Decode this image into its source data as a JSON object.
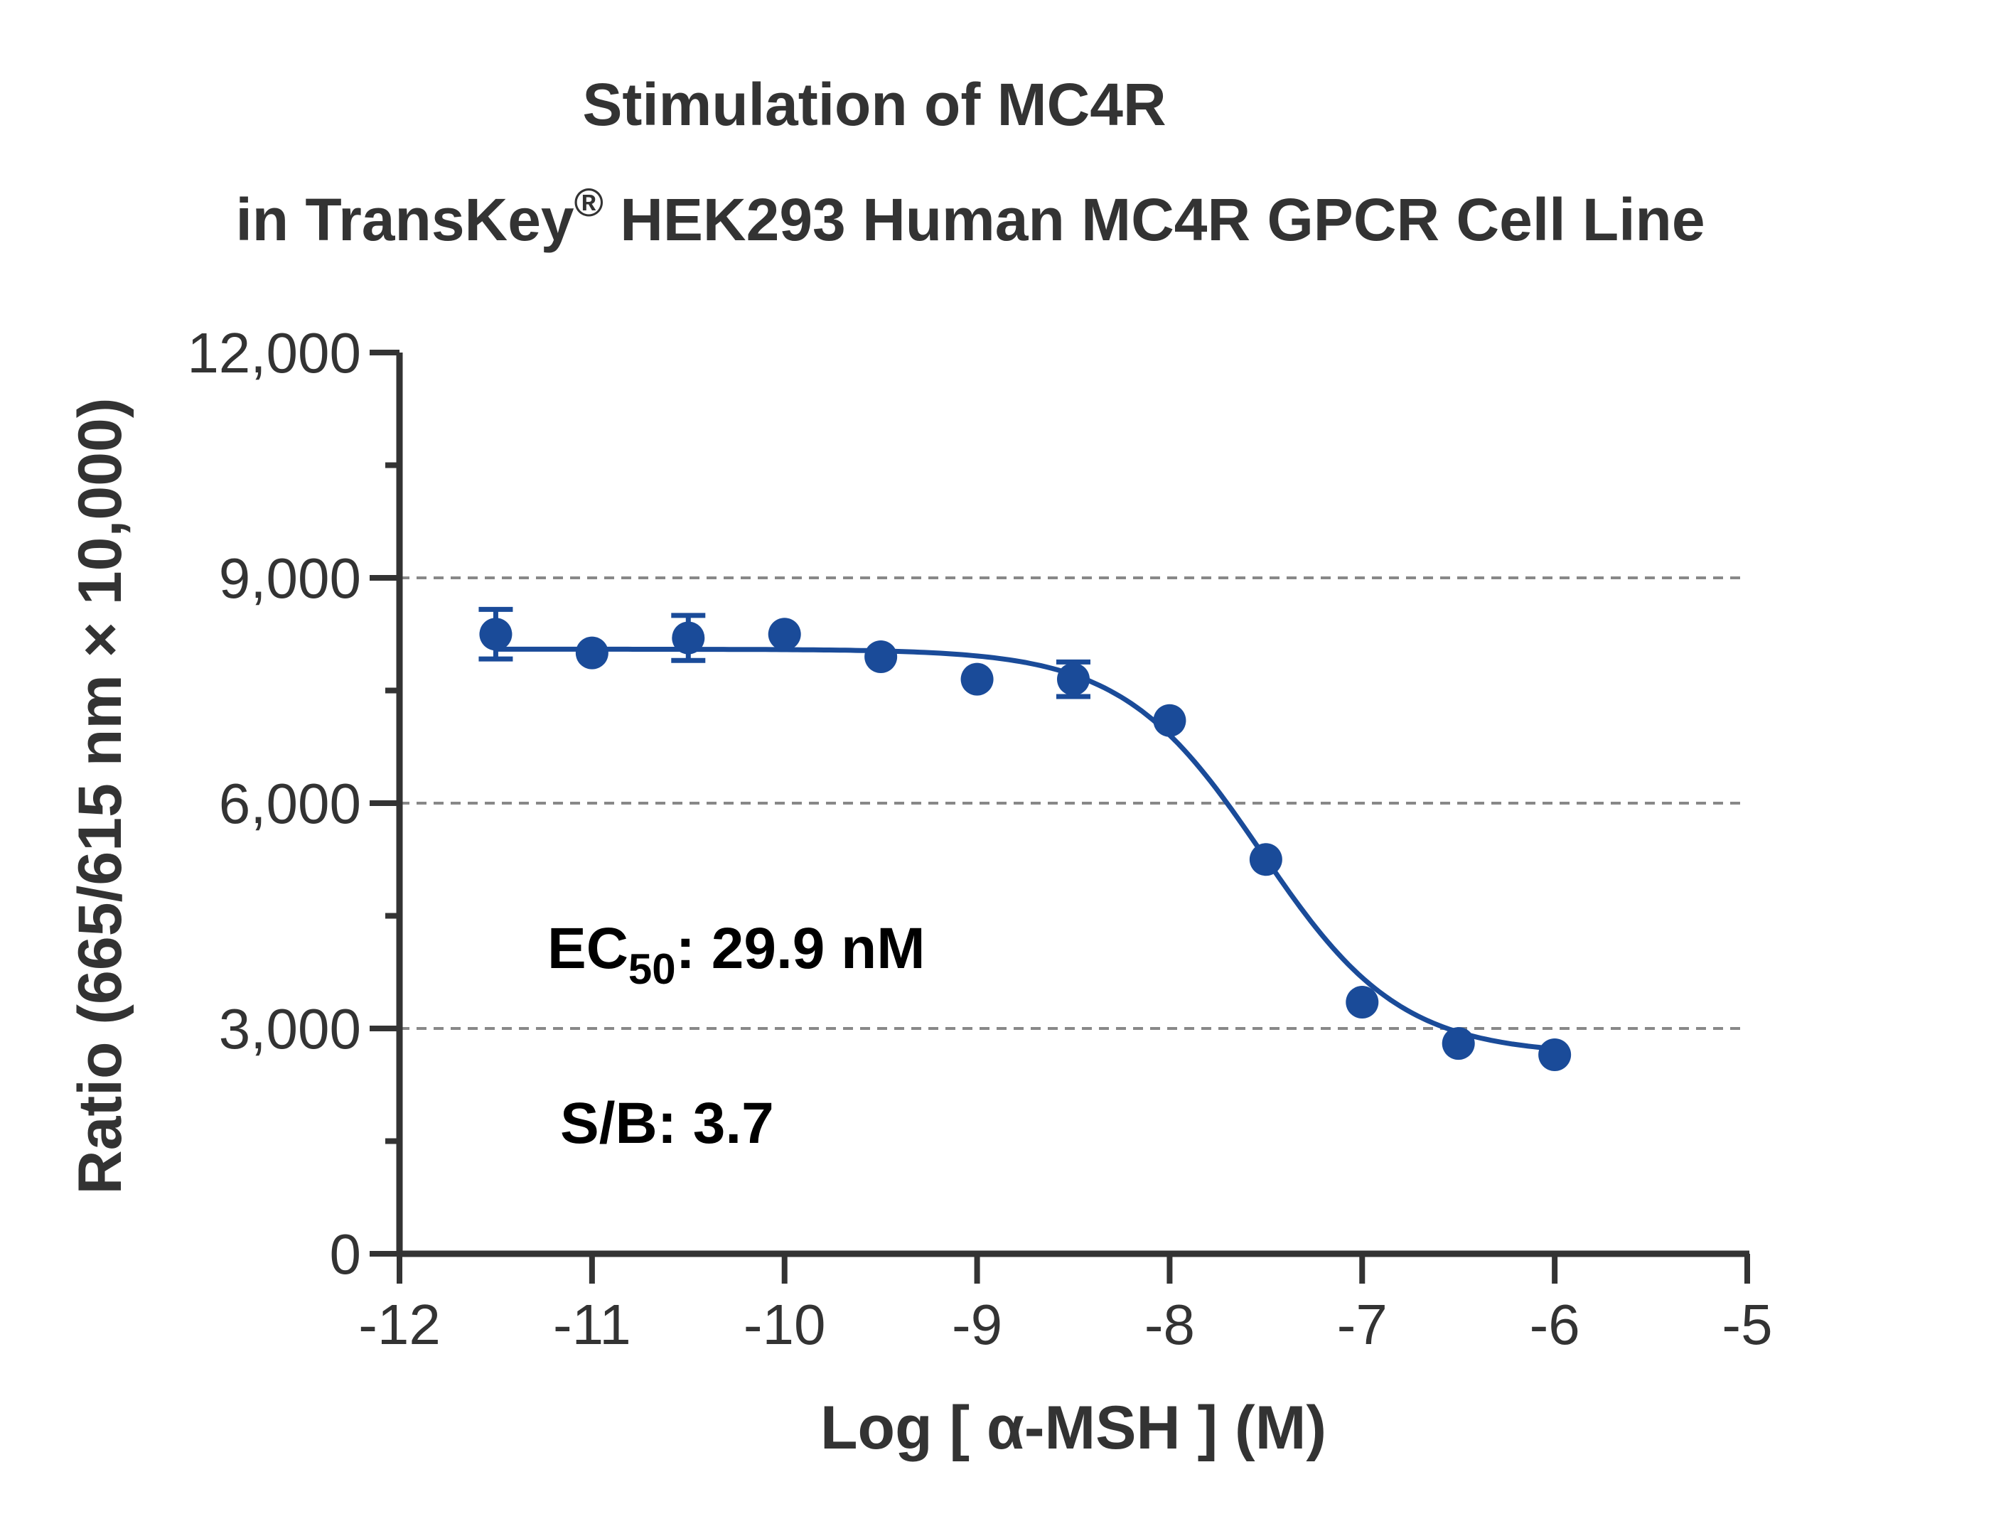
{
  "chart_data": {
    "type": "scatter",
    "title_line1": "Stimulation of  MC4R",
    "title_line2_pre": "in TransKey",
    "title_line2_sup": "®",
    "title_line2_post": " HEK293 Human MC4R GPCR Cell Line",
    "xlabel": "Log [ α-MSH ]  (M)",
    "ylabel": "Ratio (665/615 nm × 10,000)",
    "xlim": [
      -12,
      -5
    ],
    "ylim": [
      0,
      12000
    ],
    "x_ticks": [
      "-12",
      "-11",
      "-10",
      "-9",
      "-8",
      "-7",
      "-6",
      "-5"
    ],
    "y_ticks": [
      "0",
      "3,000",
      "6,000",
      "9,000",
      "12,000"
    ],
    "y_tick_values": [
      0,
      3000,
      6000,
      9000,
      12000
    ],
    "y_minor_ticks": [
      1500,
      4500,
      7500,
      10500
    ],
    "grid_y": [
      3000,
      6000,
      9000
    ],
    "series": [
      {
        "x": [
          -11.5,
          -11,
          -10.5,
          -10,
          -9.5,
          -9,
          -8.5,
          -8,
          -7.5,
          -7,
          -6.5,
          -6
        ],
        "y": [
          8250,
          8000,
          8200,
          8250,
          7950,
          7650,
          7650,
          7100,
          5250,
          3350,
          2800,
          2650
        ],
        "error": [
          330,
          0,
          300,
          0,
          0,
          0,
          230,
          0,
          0,
          0,
          0,
          0
        ]
      }
    ],
    "fit": {
      "top": 8050,
      "bottom": 2650,
      "log_ec50": -7.524,
      "hill_slope": -1.2
    },
    "annotations": {
      "ec_prefix": "EC",
      "ec_sub": "50",
      "ec_value": ": 29.9 nM",
      "sb": "S/B: 3.7"
    },
    "colors": {
      "series": "#1a4b99",
      "axis": "#333333",
      "grid": "#888888"
    }
  }
}
